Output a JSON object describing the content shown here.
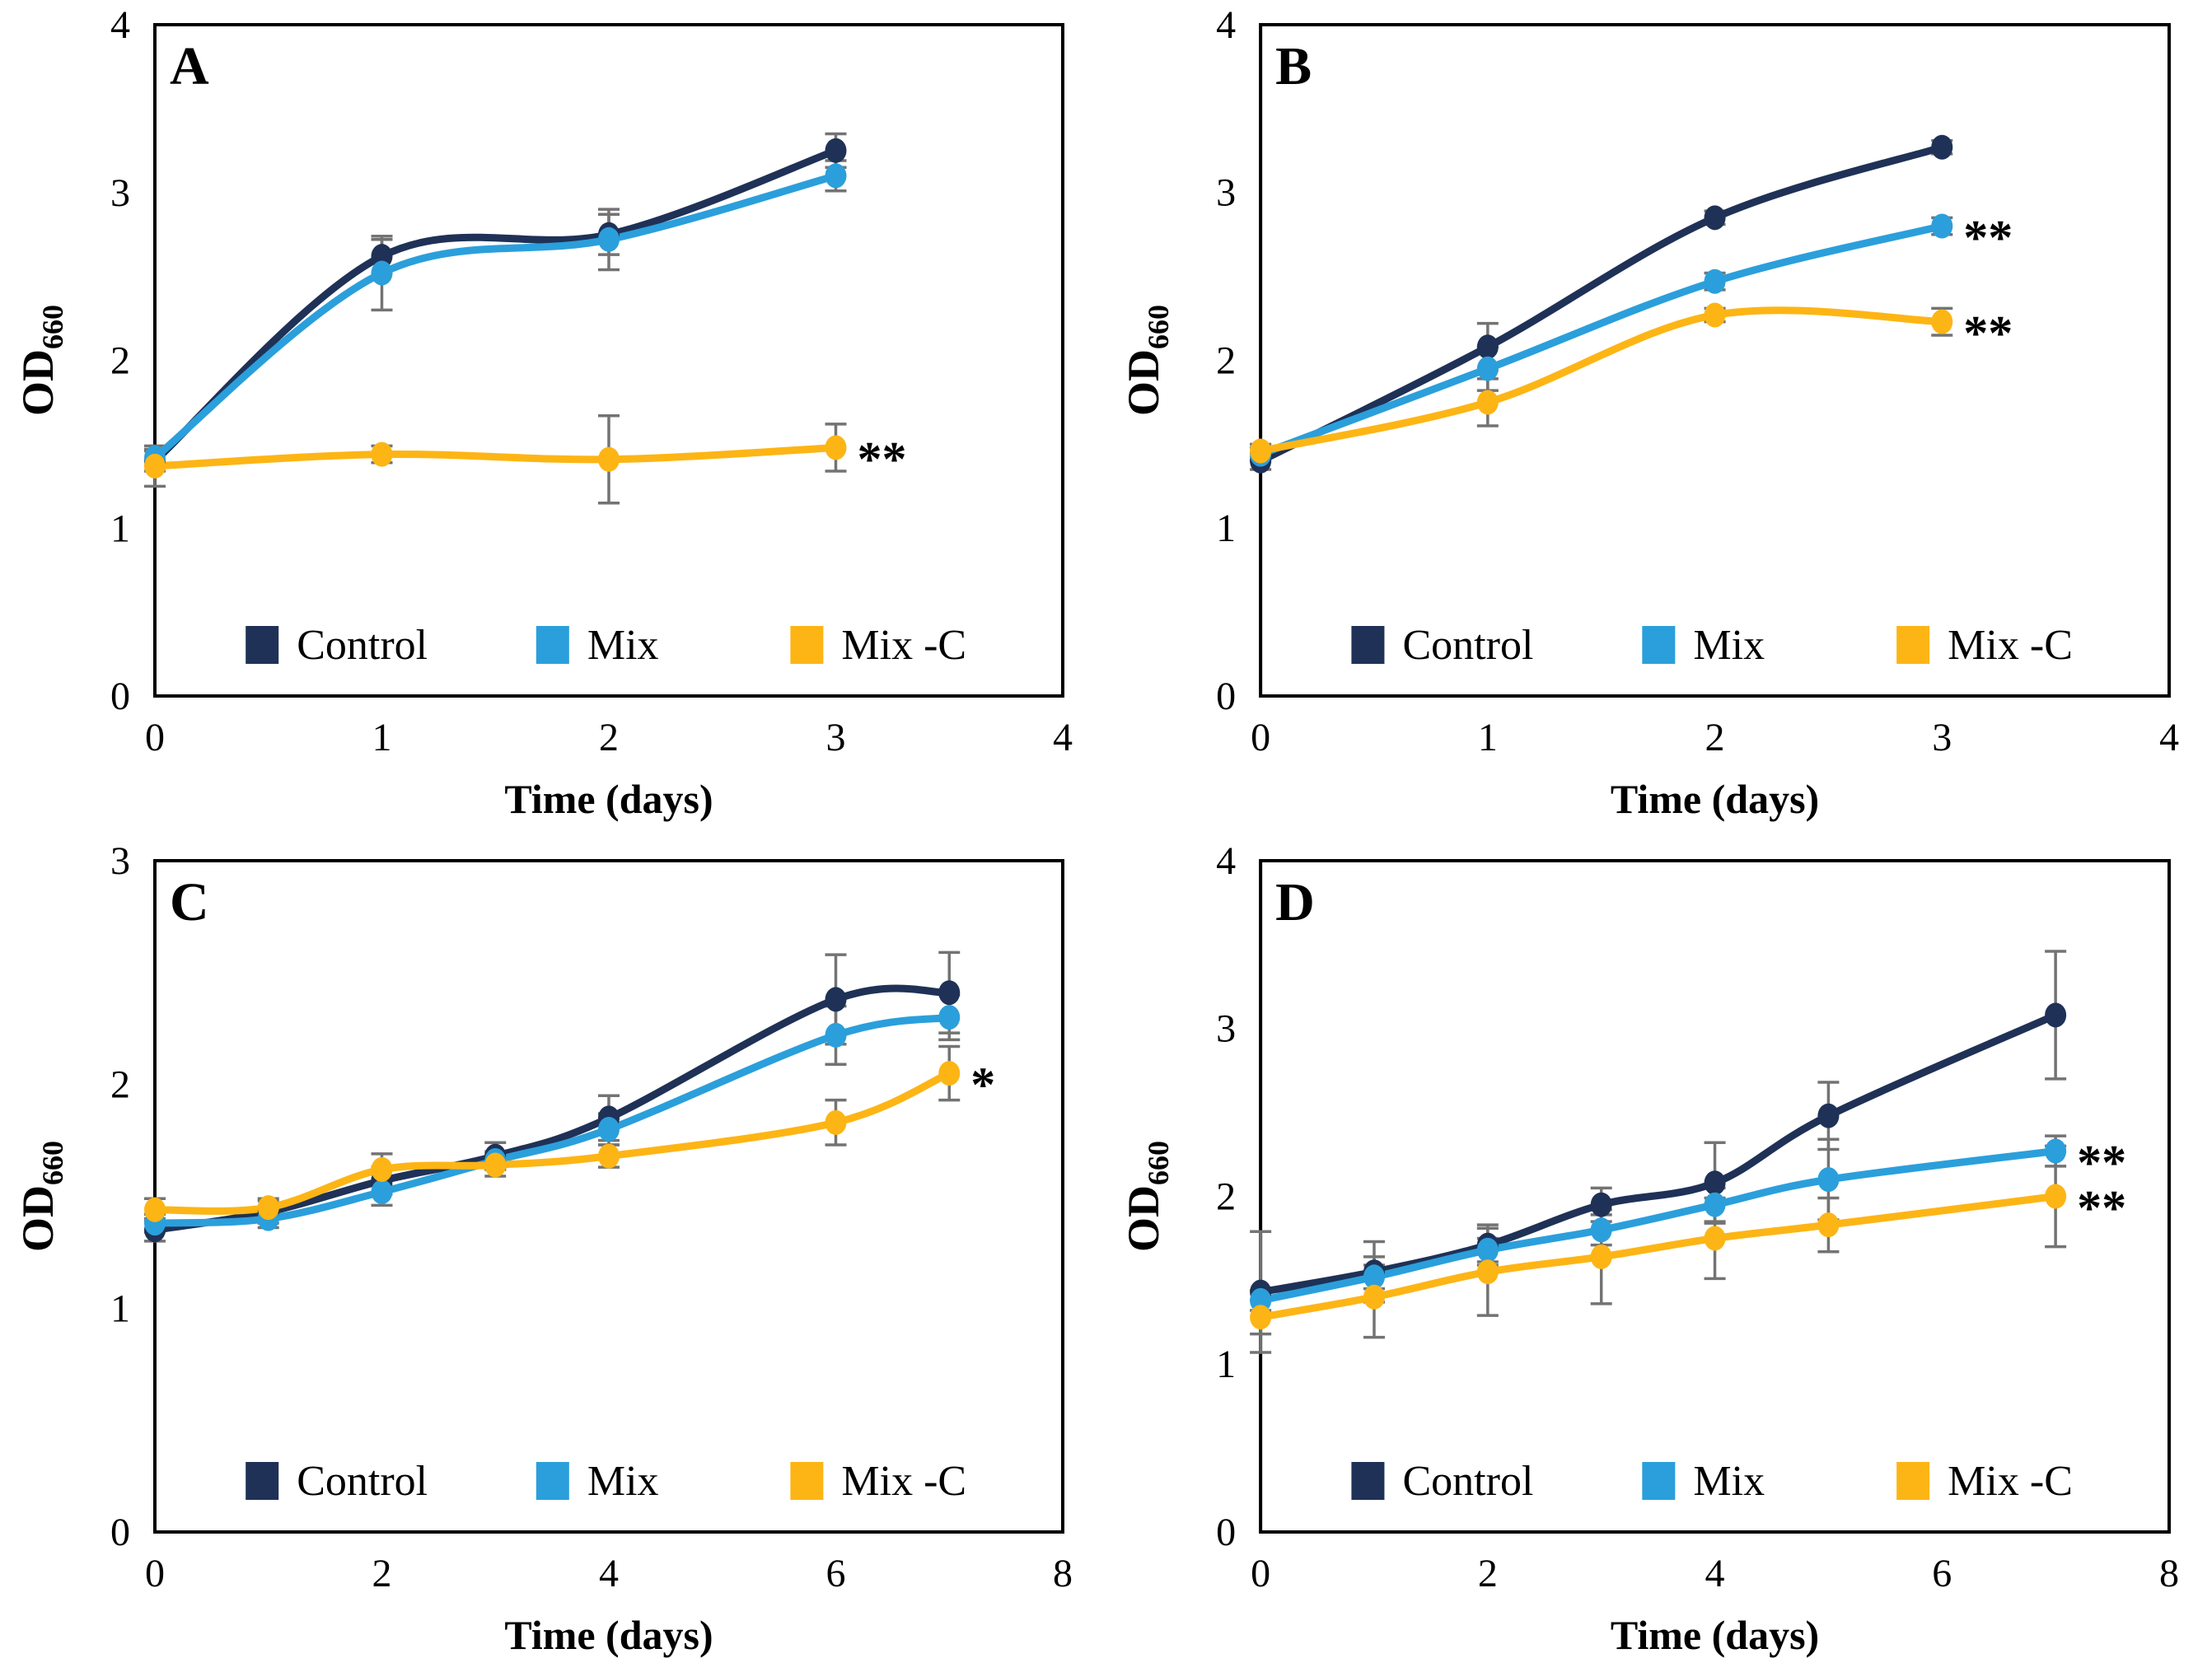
{
  "figure": {
    "background": "#ffffff",
    "text_color": "#000000",
    "axis_color": "#000000",
    "error_bar_color": "#737373"
  },
  "colors": {
    "control": "#1f3156",
    "mix": "#2b9fdb",
    "mix_c": "#fdb515"
  },
  "chart_data": [
    {
      "type": "line",
      "panel_label": "A",
      "xlabel": "Time (days)",
      "ylabel": "OD",
      "ylabel_sub": "660",
      "xlim": [
        0,
        4
      ],
      "ylim": [
        0,
        4
      ],
      "xticks": [
        0,
        1,
        2,
        3,
        4
      ],
      "yticks": [
        0,
        1,
        2,
        3,
        4
      ],
      "grid": false,
      "legend_position": "inside-bottom",
      "series": [
        {
          "name": "Control",
          "color": "#1f3156",
          "x": [
            0,
            1,
            2,
            3
          ],
          "y": [
            1.4,
            2.62,
            2.75,
            3.25
          ],
          "err": [
            0.06,
            0.1,
            0.12,
            0.1
          ],
          "annotation": ""
        },
        {
          "name": "Mix",
          "color": "#2b9fdb",
          "x": [
            0,
            1,
            2,
            3
          ],
          "y": [
            1.42,
            2.52,
            2.72,
            3.1
          ],
          "err": [
            0.05,
            0.22,
            0.18,
            0.09
          ],
          "annotation": ""
        },
        {
          "name": "Mix -C",
          "color": "#fdb515",
          "x": [
            0,
            1,
            2,
            3
          ],
          "y": [
            1.37,
            1.44,
            1.41,
            1.48
          ],
          "err": [
            0.12,
            0.05,
            0.26,
            0.14
          ],
          "annotation": "**"
        }
      ]
    },
    {
      "type": "line",
      "panel_label": "B",
      "xlabel": "Time (days)",
      "ylabel": "OD",
      "ylabel_sub": "660",
      "xlim": [
        0,
        4
      ],
      "ylim": [
        0,
        4
      ],
      "xticks": [
        0,
        1,
        2,
        3,
        4
      ],
      "yticks": [
        0,
        1,
        2,
        3,
        4
      ],
      "grid": false,
      "legend_position": "inside-bottom",
      "series": [
        {
          "name": "Control",
          "color": "#1f3156",
          "x": [
            0,
            1,
            2,
            3
          ],
          "y": [
            1.4,
            2.08,
            2.85,
            3.27
          ],
          "err": [
            0.05,
            0.14,
            0.04,
            0.04
          ],
          "annotation": ""
        },
        {
          "name": "Mix",
          "color": "#2b9fdb",
          "x": [
            0,
            1,
            2,
            3
          ],
          "y": [
            1.44,
            1.95,
            2.47,
            2.8
          ],
          "err": [
            0.04,
            0.13,
            0.05,
            0.05
          ],
          "annotation": "**"
        },
        {
          "name": "Mix -C",
          "color": "#fdb515",
          "x": [
            0,
            1,
            2,
            3
          ],
          "y": [
            1.46,
            1.75,
            2.27,
            2.23
          ],
          "err": [
            0.04,
            0.14,
            0.04,
            0.08
          ],
          "annotation": "**"
        }
      ]
    },
    {
      "type": "line",
      "panel_label": "C",
      "xlabel": "Time (days)",
      "ylabel": "OD",
      "ylabel_sub": "660",
      "xlim": [
        0,
        8
      ],
      "ylim": [
        0,
        3
      ],
      "xticks": [
        0,
        2,
        4,
        6,
        8
      ],
      "yticks": [
        0,
        1,
        2,
        3
      ],
      "grid": false,
      "legend_position": "inside-bottom",
      "series": [
        {
          "name": "Control",
          "color": "#1f3156",
          "x": [
            0,
            1,
            2,
            3,
            4,
            6,
            7
          ],
          "y": [
            1.35,
            1.43,
            1.57,
            1.68,
            1.85,
            2.38,
            2.41
          ],
          "err": [
            0.05,
            0.05,
            0.06,
            0.06,
            0.1,
            0.2,
            0.18
          ],
          "annotation": ""
        },
        {
          "name": "Mix",
          "color": "#2b9fdb",
          "x": [
            0,
            1,
            2,
            3,
            4,
            6,
            7
          ],
          "y": [
            1.38,
            1.4,
            1.52,
            1.66,
            1.8,
            2.22,
            2.3
          ],
          "err": [
            0.04,
            0.04,
            0.06,
            0.04,
            0.07,
            0.13,
            0.1
          ],
          "annotation": ""
        },
        {
          "name": "Mix -C",
          "color": "#fdb515",
          "x": [
            0,
            1,
            2,
            3,
            4,
            6,
            7
          ],
          "y": [
            1.44,
            1.45,
            1.62,
            1.64,
            1.68,
            1.83,
            2.05
          ],
          "err": [
            0.05,
            0.04,
            0.07,
            0.05,
            0.05,
            0.1,
            0.12
          ],
          "annotation": "*"
        }
      ]
    },
    {
      "type": "line",
      "panel_label": "D",
      "xlabel": "Time (days)",
      "ylabel": "OD",
      "ylabel_sub": "660",
      "xlim": [
        0,
        8
      ],
      "ylim": [
        0,
        4
      ],
      "xticks": [
        0,
        2,
        4,
        6,
        8
      ],
      "yticks": [
        0,
        1,
        2,
        3,
        4
      ],
      "grid": false,
      "legend_position": "inside-bottom",
      "series": [
        {
          "name": "Control",
          "color": "#1f3156",
          "x": [
            0,
            1,
            2,
            3,
            4,
            5,
            7
          ],
          "y": [
            1.43,
            1.55,
            1.71,
            1.95,
            2.08,
            2.48,
            3.08
          ],
          "err": [
            0.36,
            0.18,
            0.12,
            0.1,
            0.24,
            0.2,
            0.38
          ],
          "annotation": ""
        },
        {
          "name": "Mix",
          "color": "#2b9fdb",
          "x": [
            0,
            1,
            2,
            3,
            4,
            5,
            7
          ],
          "y": [
            1.38,
            1.52,
            1.68,
            1.8,
            1.95,
            2.1,
            2.27
          ],
          "err": [
            0.06,
            0.07,
            0.07,
            0.09,
            0.1,
            0.24,
            0.09
          ],
          "annotation": "**"
        },
        {
          "name": "Mix -C",
          "color": "#fdb515",
          "x": [
            0,
            1,
            2,
            3,
            4,
            5,
            7
          ],
          "y": [
            1.28,
            1.4,
            1.55,
            1.64,
            1.75,
            1.83,
            2.0
          ],
          "err": [
            0.1,
            0.24,
            0.26,
            0.28,
            0.24,
            0.16,
            0.3
          ],
          "annotation": "**"
        }
      ]
    }
  ]
}
